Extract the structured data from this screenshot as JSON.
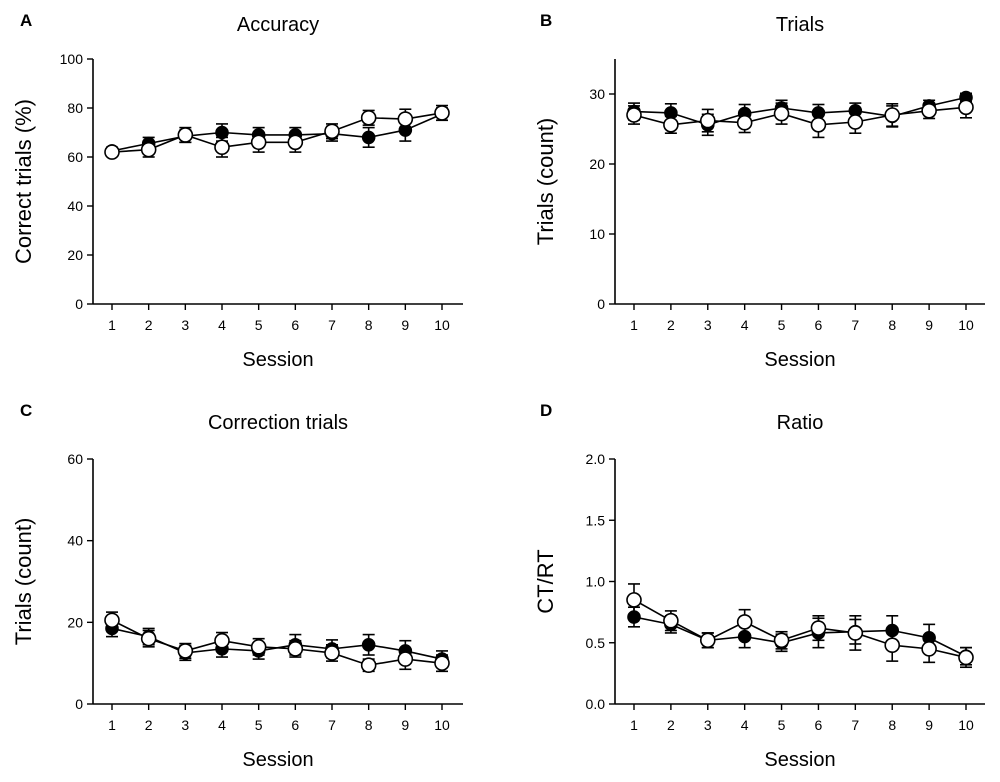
{
  "chart_data": [
    {
      "panel": "A",
      "type": "line",
      "title": "Accuracy",
      "xlabel": "Session",
      "ylabel": "Correct trials (%)",
      "categories": [
        1,
        2,
        3,
        4,
        5,
        6,
        7,
        8,
        9,
        10
      ],
      "ylim": [
        0,
        100
      ],
      "yticks": [
        0,
        20,
        40,
        60,
        80,
        100
      ],
      "yticklabels": [
        "0",
        "20",
        "40",
        "60",
        "80",
        "100"
      ],
      "series": [
        {
          "name": "filled",
          "marker": "filled-circle",
          "values": [
            62.5,
            65.5,
            68.5,
            70,
            69,
            69,
            69.5,
            68,
            71,
            77.5
          ],
          "errors": [
            1.5,
            2.5,
            2.5,
            3.5,
            3,
            3,
            3,
            4,
            4.5,
            2.5
          ]
        },
        {
          "name": "open",
          "marker": "open-circle",
          "values": [
            62,
            63,
            69,
            64,
            66,
            66,
            70.5,
            76,
            75.5,
            78
          ],
          "errors": [
            1.5,
            3,
            3,
            4,
            4,
            4,
            3,
            3,
            4,
            3
          ]
        }
      ]
    },
    {
      "panel": "B",
      "type": "line",
      "title": "Trials",
      "xlabel": "Session",
      "ylabel": "Trials (count)",
      "categories": [
        1,
        2,
        3,
        4,
        5,
        6,
        7,
        8,
        9,
        10
      ],
      "ylim": [
        0,
        35
      ],
      "yticks": [
        0,
        10,
        20,
        30
      ],
      "yticklabels": [
        "0",
        "10",
        "20",
        "30"
      ],
      "series": [
        {
          "name": "filled",
          "marker": "filled-circle",
          "values": [
            27.5,
            27.3,
            25.6,
            27.2,
            28,
            27.3,
            27.6,
            26.8,
            28.3,
            29.5
          ],
          "errors": [
            1.2,
            1.3,
            1.5,
            1.3,
            1.1,
            1.2,
            1.1,
            1.5,
            0.8,
            0.6
          ]
        },
        {
          "name": "open",
          "marker": "open-circle",
          "values": [
            27,
            25.6,
            26.2,
            25.9,
            27.2,
            25.6,
            26,
            27,
            27.6,
            28.1
          ],
          "errors": [
            1.3,
            1.2,
            1.6,
            1.4,
            1.5,
            1.8,
            1.6,
            1.6,
            1.1,
            1.5
          ]
        }
      ]
    },
    {
      "panel": "C",
      "type": "line",
      "title": "Correction trials",
      "xlabel": "Session",
      "ylabel": "Trials (count)",
      "categories": [
        1,
        2,
        3,
        4,
        5,
        6,
        7,
        8,
        9,
        10
      ],
      "ylim": [
        0,
        60
      ],
      "yticks": [
        0,
        20,
        40,
        60
      ],
      "yticklabels": [
        "0",
        "20",
        "40",
        "60"
      ],
      "series": [
        {
          "name": "filled",
          "marker": "filled-circle",
          "values": [
            18.5,
            16.5,
            12.5,
            13.5,
            13,
            14.5,
            13.5,
            14.5,
            13,
            11
          ],
          "errors": [
            2,
            2,
            1.8,
            2,
            2,
            2.5,
            2.2,
            2.5,
            2.5,
            2
          ]
        },
        {
          "name": "open",
          "marker": "open-circle",
          "values": [
            20.5,
            16,
            13,
            15.5,
            14,
            13.5,
            12.5,
            9.5,
            11,
            10
          ],
          "errors": [
            2,
            2,
            1.8,
            2,
            2,
            2,
            2,
            1.5,
            2.5,
            2
          ]
        }
      ]
    },
    {
      "panel": "D",
      "type": "line",
      "title": "Ratio",
      "xlabel": "Session",
      "ylabel": "CT/RT",
      "categories": [
        1,
        2,
        3,
        4,
        5,
        6,
        7,
        8,
        9,
        10
      ],
      "ylim": [
        0,
        2
      ],
      "yticks": [
        0,
        0.5,
        1,
        1.5,
        2
      ],
      "yticklabels": [
        "0.0",
        "0.5",
        "1.0",
        "1.5",
        "2.0"
      ],
      "series": [
        {
          "name": "filled",
          "marker": "filled-circle",
          "values": [
            0.71,
            0.65,
            0.52,
            0.55,
            0.5,
            0.58,
            0.59,
            0.6,
            0.54,
            0.39
          ],
          "errors": [
            0.08,
            0.07,
            0.06,
            0.09,
            0.07,
            0.12,
            0.1,
            0.12,
            0.11,
            0.07
          ]
        },
        {
          "name": "open",
          "marker": "open-circle",
          "values": [
            0.85,
            0.68,
            0.52,
            0.67,
            0.52,
            0.62,
            0.58,
            0.48,
            0.45,
            0.38
          ],
          "errors": [
            0.13,
            0.08,
            0.06,
            0.1,
            0.07,
            0.1,
            0.14,
            0.13,
            0.11,
            0.08
          ]
        }
      ]
    }
  ]
}
